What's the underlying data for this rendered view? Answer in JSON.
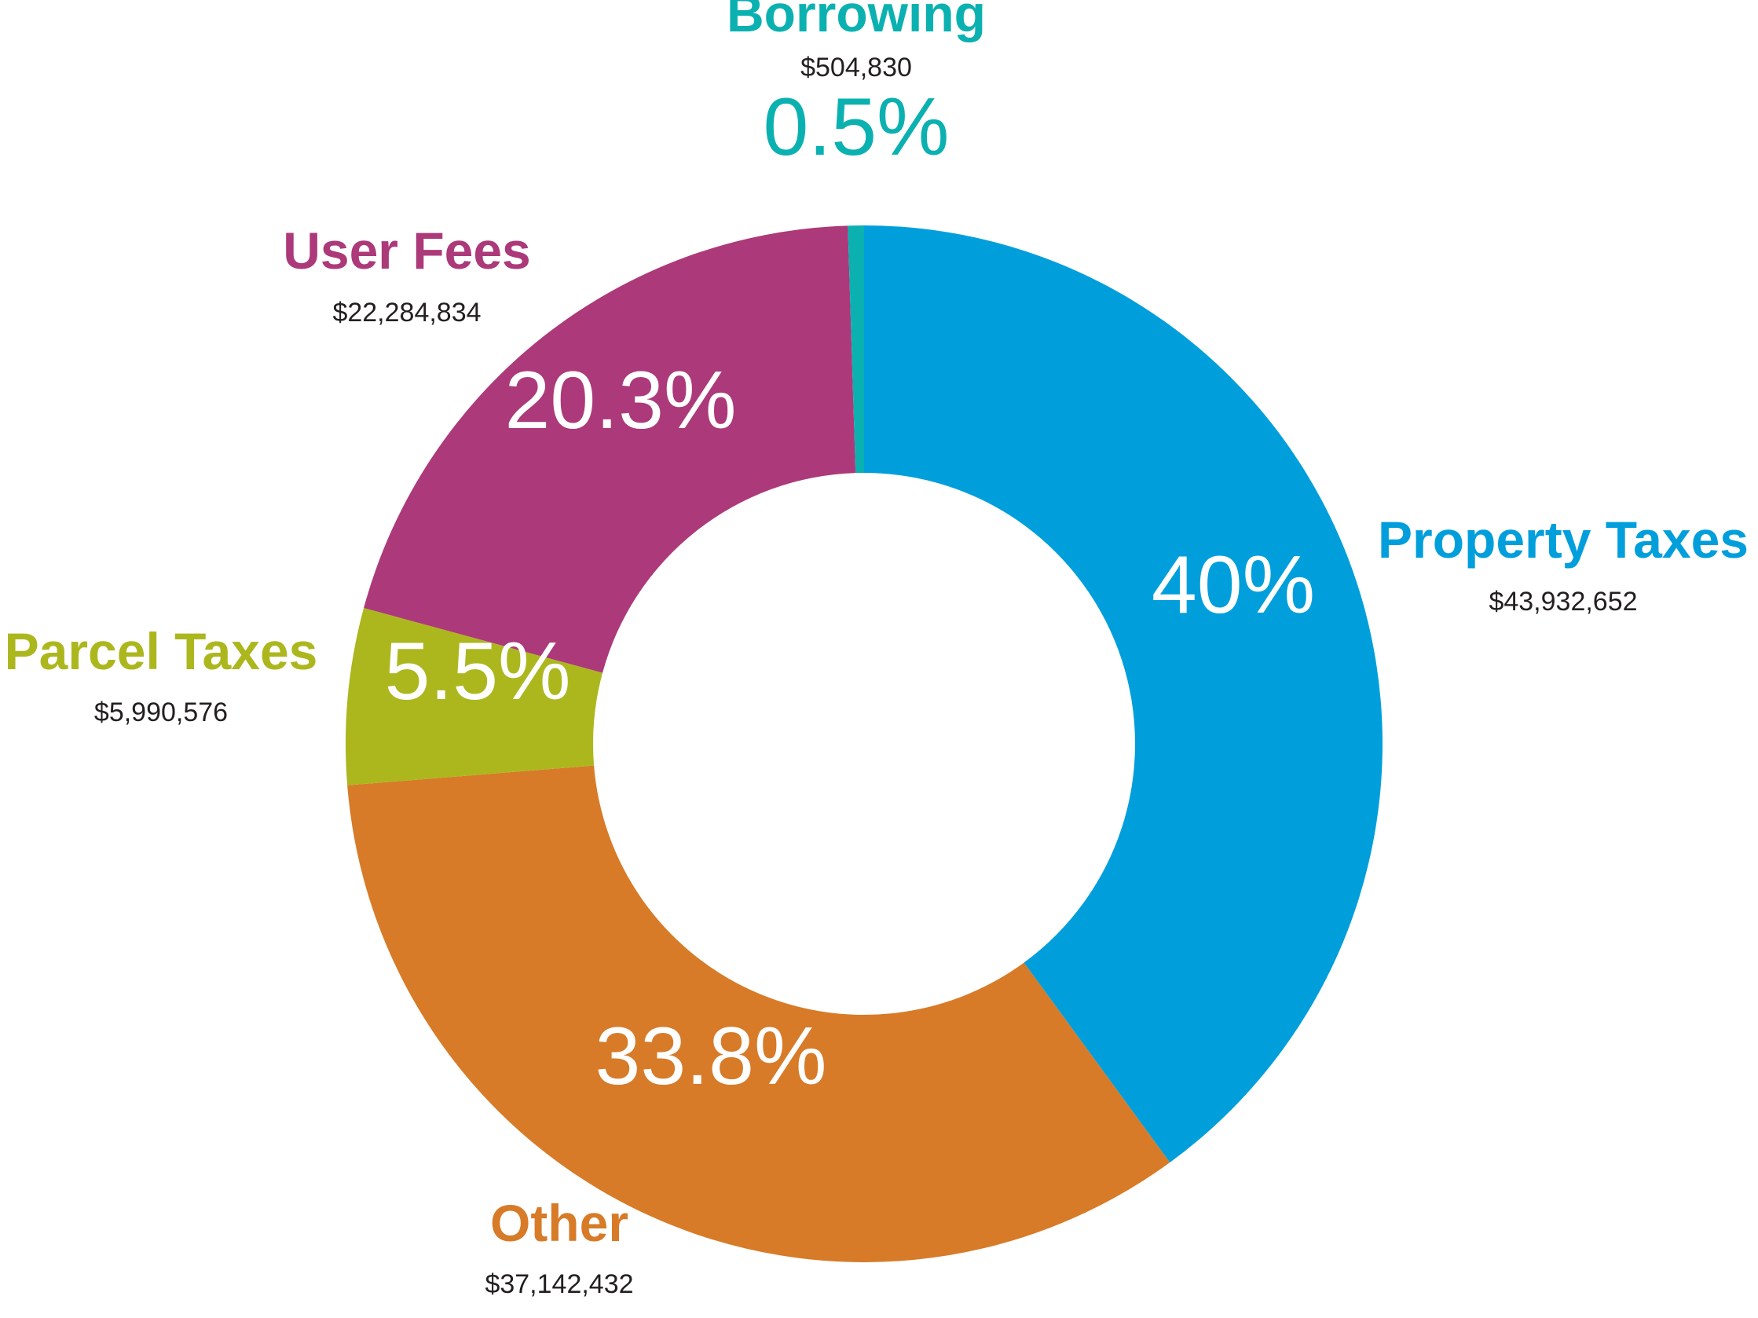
{
  "chart_data": {
    "type": "pie",
    "variant": "donut",
    "slices": [
      {
        "name": "Property Taxes",
        "amount": "$43,932,652",
        "value": 43932652,
        "percent": 40.0,
        "percent_label": "40%",
        "color": "#009fdc"
      },
      {
        "name": "Other",
        "amount": "$37,142,432",
        "value": 37142432,
        "percent": 33.8,
        "percent_label": "33.8%",
        "color": "#d77b28"
      },
      {
        "name": "Parcel Taxes",
        "amount": "$5,990,576",
        "value": 5990576,
        "percent": 5.5,
        "percent_label": "5.5%",
        "color": "#acb71e"
      },
      {
        "name": "User Fees",
        "amount": "$22,284,834",
        "value": 22284834,
        "percent": 20.3,
        "percent_label": "20.3%",
        "color": "#ac3979"
      },
      {
        "name": "Borrowing",
        "amount": "$504,830",
        "value": 504830,
        "percent": 0.5,
        "percent_label": "0.5%",
        "color": "#0bb1b0"
      }
    ],
    "start": "12 o'clock",
    "direction": "clockwise",
    "percent_label_color_inside": "#ffffff"
  }
}
